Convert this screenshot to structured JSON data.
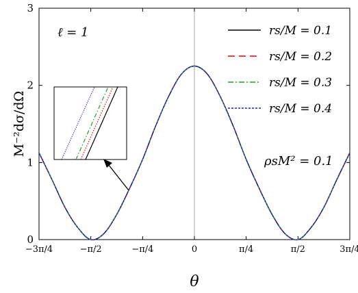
{
  "chart_data": {
    "type": "line",
    "title": "",
    "xlabel": "θ",
    "ylabel": "M⁻²dσ/dΩ",
    "xlim": [
      -2.356,
      2.356
    ],
    "ylim": [
      0,
      3
    ],
    "xticks": [
      {
        "value": -2.356,
        "label": "−3π/4"
      },
      {
        "value": -1.571,
        "label": "−π/2"
      },
      {
        "value": -0.785,
        "label": "−π/4"
      },
      {
        "value": 0,
        "label": "0"
      },
      {
        "value": 0.785,
        "label": "π/4"
      },
      {
        "value": 1.571,
        "label": "π/2"
      },
      {
        "value": 2.356,
        "label": "3π/4"
      }
    ],
    "yticks": [
      0,
      1,
      2,
      3
    ],
    "grid": false,
    "reference_line_x": 0,
    "legend_position": "top-right",
    "annotations": [
      "ℓ = 1",
      "ρsM² = 0.1"
    ],
    "x": [
      -2.356,
      -2.159,
      -1.963,
      -1.767,
      -1.571,
      -1.374,
      -1.178,
      -0.982,
      -0.785,
      -0.589,
      -0.393,
      -0.196,
      0,
      0.196,
      0.393,
      0.589,
      0.785,
      0.982,
      1.178,
      1.374,
      1.571,
      1.767,
      1.963,
      2.159,
      2.356
    ],
    "series": [
      {
        "name": "rs/M = 0.1",
        "color": "#000000",
        "dash": "solid",
        "values": [
          1.125,
          0.777,
          0.419,
          0.154,
          0.0,
          0.077,
          0.325,
          0.665,
          1.04,
          1.47,
          1.853,
          2.146,
          2.25,
          2.146,
          1.853,
          1.47,
          1.04,
          0.665,
          0.325,
          0.077,
          0.0,
          0.154,
          0.419,
          0.777,
          1.125
        ]
      },
      {
        "name": "rs/M = 0.2",
        "color": "#e8000b",
        "dash": "dashed",
        "values": [
          1.125,
          0.777,
          0.419,
          0.154,
          0.0,
          0.077,
          0.325,
          0.665,
          1.04,
          1.47,
          1.853,
          2.146,
          2.25,
          2.146,
          1.853,
          1.47,
          1.04,
          0.665,
          0.325,
          0.077,
          0.0,
          0.154,
          0.419,
          0.777,
          1.125
        ]
      },
      {
        "name": "rs/M = 0.3",
        "color": "#1aa11a",
        "dash": "dashdot",
        "values": [
          1.125,
          0.777,
          0.419,
          0.154,
          0.0,
          0.077,
          0.325,
          0.665,
          1.04,
          1.47,
          1.853,
          2.146,
          2.25,
          2.146,
          1.853,
          1.47,
          1.04,
          0.665,
          0.325,
          0.077,
          0.0,
          0.154,
          0.419,
          0.777,
          1.125
        ]
      },
      {
        "name": "rs/M = 0.4",
        "color": "#1f1fdd",
        "dash": "dotted",
        "values": [
          1.125,
          0.777,
          0.419,
          0.154,
          0.0,
          0.077,
          0.325,
          0.665,
          1.04,
          1.47,
          1.853,
          2.146,
          2.25,
          2.146,
          1.853,
          1.47,
          1.04,
          0.665,
          0.325,
          0.077,
          0.0,
          0.154,
          0.419,
          0.777,
          1.125
        ]
      }
    ]
  }
}
